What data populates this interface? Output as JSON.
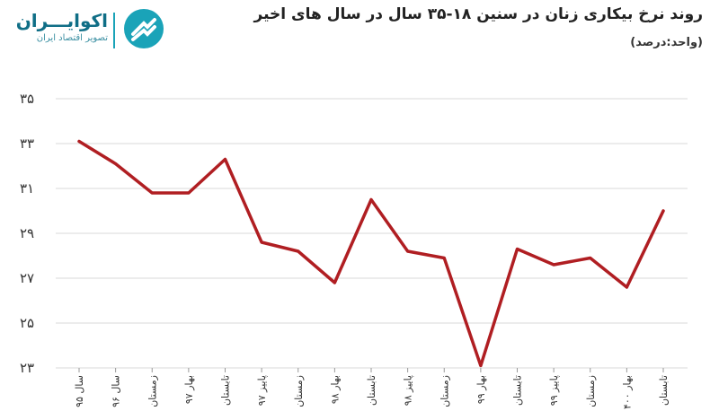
{
  "header": {
    "title": "روند نرخ بیکاری زنان در سنین ۱۸-۳۵ سال در سال های اخیر",
    "unit": "(واحد:درصد)"
  },
  "logo": {
    "name": "اکوایـــران",
    "tagline": "تصویر اقتصاد ایران",
    "icon": "ecoiran-logo-icon"
  },
  "chart_data": {
    "type": "line",
    "title": "روند نرخ بیکاری زنان در سنین ۱۸-۳۵ سال در سال های اخیر",
    "unit": "(واحد:درصد)",
    "categories": [
      "سال ۹۵",
      "سال ۹۶",
      "زمستان",
      "بهار ۹۷",
      "تابستان",
      "پاییز ۹۷",
      "زمستان",
      "بهار ۹۸",
      "تابستان",
      "پاییز ۹۸",
      "زمستان",
      "بهار ۹۹",
      "تابستان",
      "پاییز ۹۹",
      "زمستان",
      "بهار ۱۴۰۰",
      "تابستان"
    ],
    "values": [
      33.1,
      32.1,
      30.8,
      30.8,
      32.3,
      28.6,
      28.2,
      26.8,
      30.5,
      28.2,
      27.9,
      23.1,
      28.3,
      27.6,
      27.9,
      26.6,
      30.0
    ],
    "ylim": [
      23,
      35
    ],
    "yticks": [
      23,
      25,
      27,
      29,
      31,
      33,
      35
    ],
    "ytick_labels": [
      "۲۳",
      "۲۵",
      "۲۷",
      "۲۹",
      "۳۱",
      "۳۳",
      "۳۵"
    ],
    "grid": true,
    "line_color": "#b01e22",
    "grid_color": "#d9d9d9"
  }
}
